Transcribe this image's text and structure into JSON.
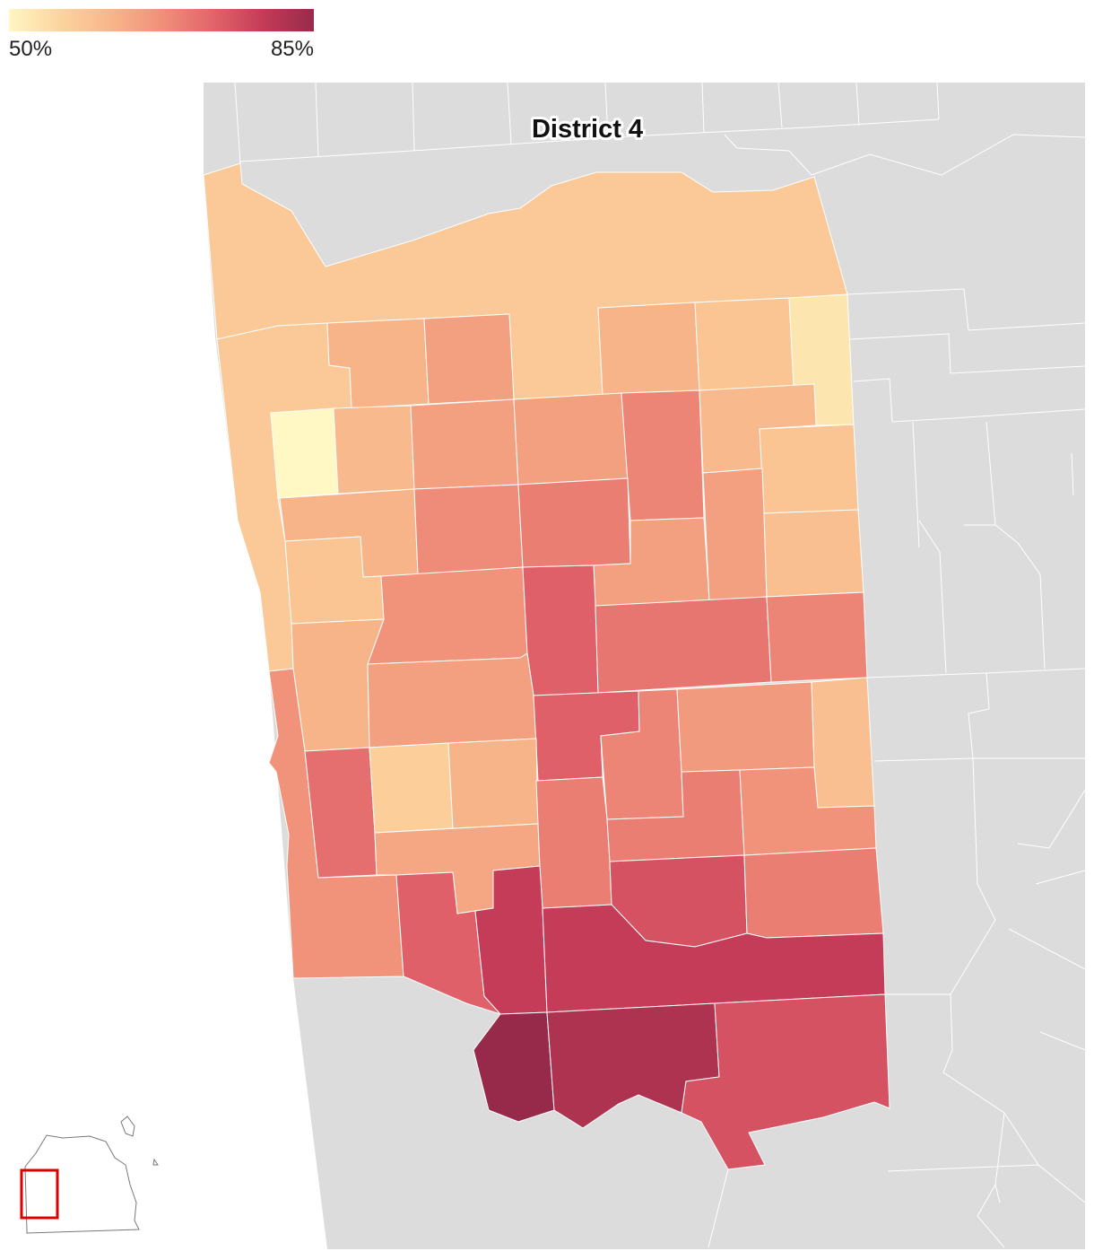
{
  "chart_data": {
    "type": "choropleth",
    "title": "District 4",
    "clim": [
      50,
      85
    ],
    "cticks": [
      {
        "value": 50,
        "label": "50%"
      },
      {
        "value": 85,
        "label": "85%"
      }
    ],
    "colorscale": [
      "#fff7c4",
      "#fcd49e",
      "#f8b68a",
      "#f0907a",
      "#e2656a",
      "#c43b57",
      "#972a4b"
    ],
    "values": [
      58,
      58,
      62,
      65,
      62,
      59,
      53,
      50,
      61,
      65,
      65,
      69,
      61,
      59,
      62,
      59,
      68,
      70,
      65,
      65,
      60,
      67,
      74,
      71,
      69,
      62,
      65,
      74,
      69,
      66,
      60,
      67,
      72,
      57,
      62,
      64,
      70,
      70,
      67,
      74,
      79,
      76,
      70,
      79,
      85,
      82,
      76
    ]
  }
}
